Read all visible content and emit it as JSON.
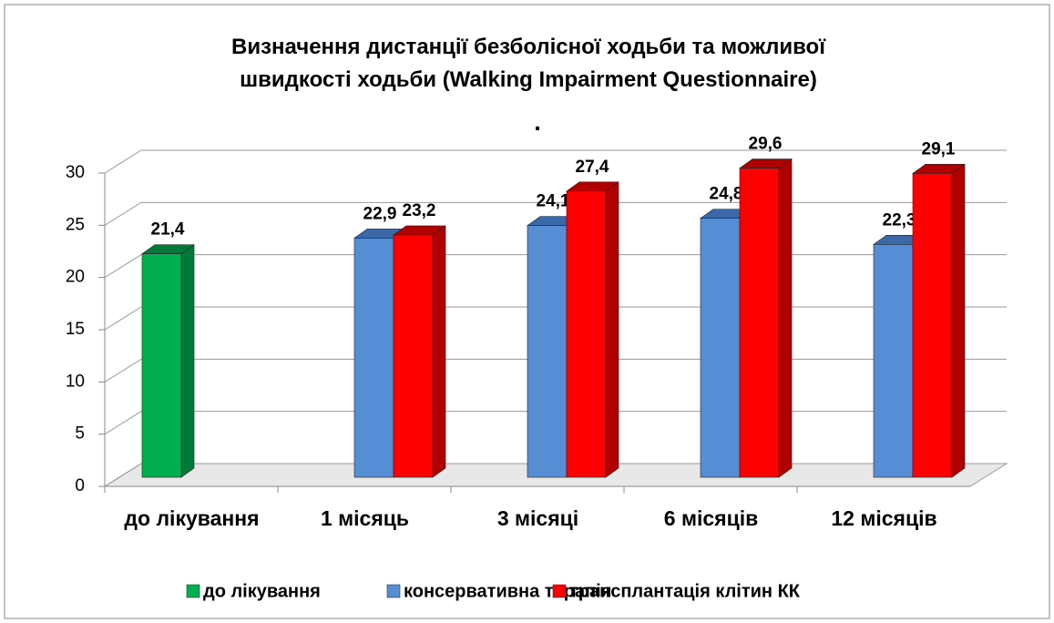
{
  "chart_data": {
    "type": "bar3d",
    "title": "Визначення дистанції безболісної ходьби та можливої швидкості ходьби (Walking Impairment Questionnaire)",
    "annotation": ".",
    "categories": [
      "до лікування",
      "1 місяць",
      "3 місяці",
      "6 місяців",
      "12 місяців"
    ],
    "series": [
      {
        "name": "до лікування",
        "color": "#00b050",
        "side": "#007a38",
        "values": [
          21.4,
          null,
          null,
          null,
          null
        ],
        "value_labels": [
          "21,4",
          null,
          null,
          null,
          null
        ]
      },
      {
        "name": "консервативна терапія",
        "color": "#558ed5",
        "side": "#3a68a8",
        "values": [
          null,
          22.9,
          24.1,
          24.8,
          22.3
        ],
        "value_labels": [
          null,
          "22,9",
          "24,1",
          "24,8",
          "22,3"
        ]
      },
      {
        "name": "трансплантація клітин КК",
        "color": "#ff0000",
        "side": "#b00000",
        "values": [
          null,
          23.2,
          27.4,
          29.6,
          29.1
        ],
        "value_labels": [
          null,
          "23,2",
          "27,4",
          "29,6",
          "29,1"
        ]
      }
    ],
    "ylim": [
      0,
      30
    ],
    "yticks": [
      0,
      5,
      10,
      15,
      20,
      25,
      30
    ],
    "grid": true,
    "legend": "bottom"
  }
}
